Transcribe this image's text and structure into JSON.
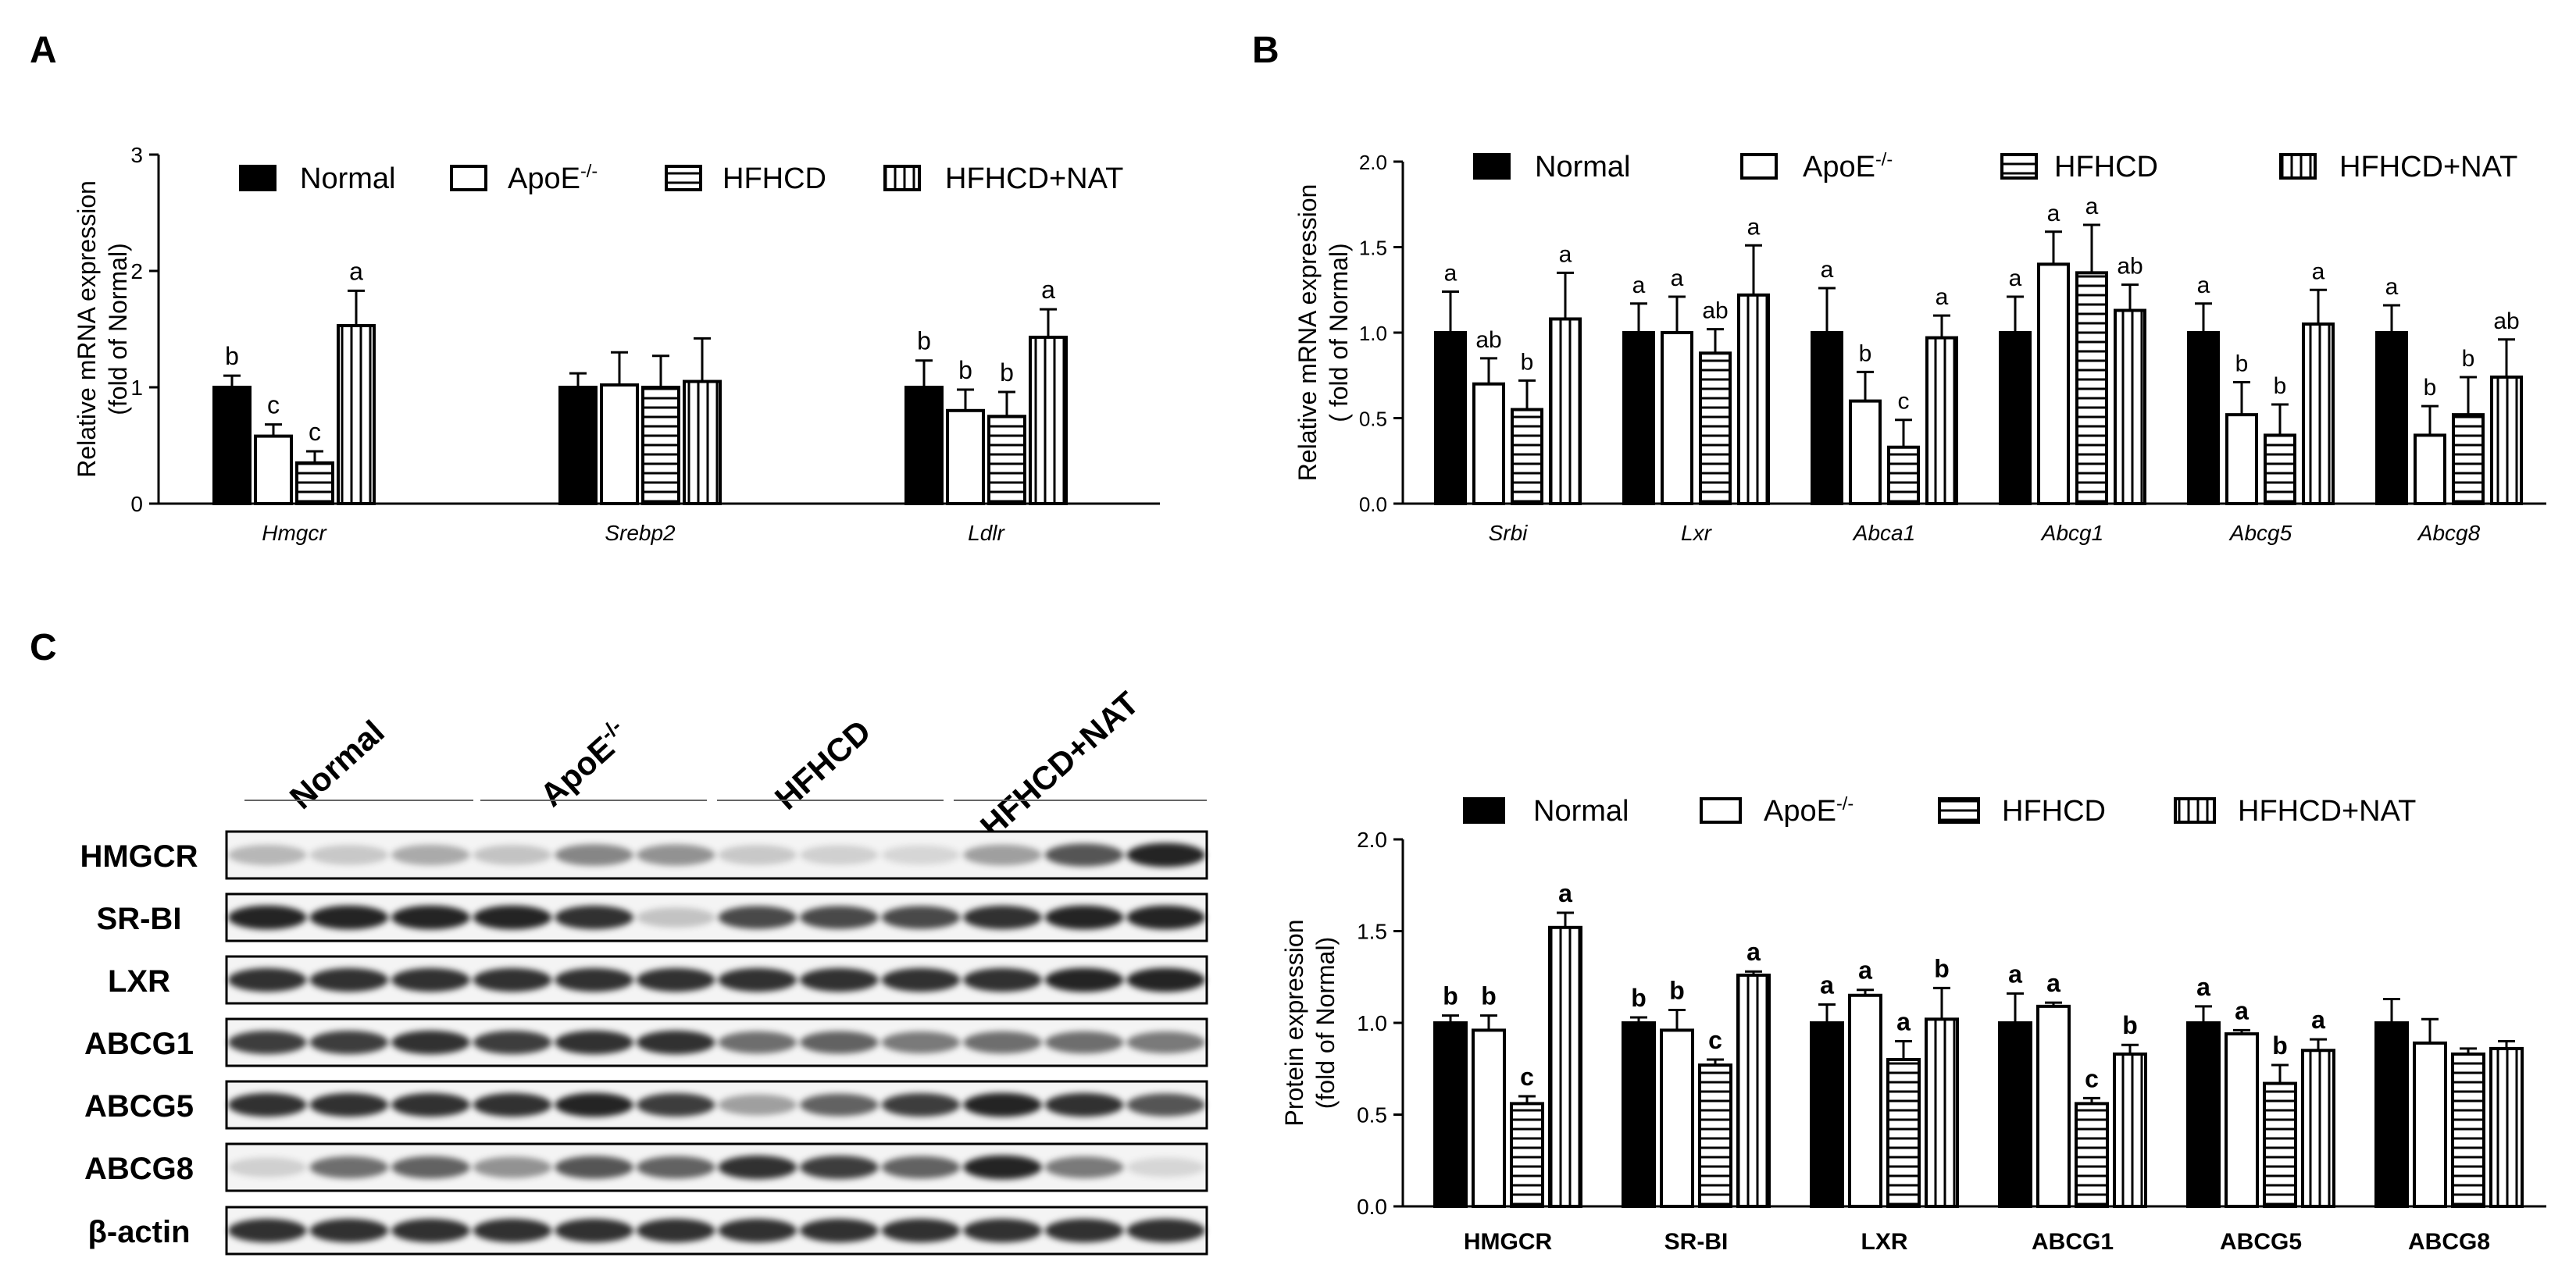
{
  "panels": {
    "A": "A",
    "B": "B",
    "C": "C"
  },
  "legend": {
    "labels": [
      "Normal",
      "ApoE",
      "HFHCD",
      "HFHCD+NAT"
    ],
    "apoe_superscript": "-/-"
  },
  "blot": {
    "groups": [
      "Normal",
      "ApoE",
      "HFHCD",
      "HFHCD+NAT"
    ],
    "apoe_superscript": "-/-",
    "proteins": [
      "HMGCR",
      "SR-BI",
      "LXR",
      "ABCG1",
      "ABCG5",
      "ABCG8",
      "β-actin"
    ],
    "intensity": [
      [
        0.25,
        0.18,
        0.3,
        0.2,
        0.45,
        0.4,
        0.18,
        0.15,
        0.12,
        0.35,
        0.65,
        0.85
      ],
      [
        0.85,
        0.85,
        0.85,
        0.85,
        0.8,
        0.2,
        0.7,
        0.7,
        0.7,
        0.8,
        0.85,
        0.85
      ],
      [
        0.8,
        0.8,
        0.8,
        0.8,
        0.8,
        0.8,
        0.8,
        0.8,
        0.8,
        0.8,
        0.85,
        0.85
      ],
      [
        0.75,
        0.75,
        0.8,
        0.75,
        0.8,
        0.8,
        0.55,
        0.6,
        0.5,
        0.55,
        0.55,
        0.5
      ],
      [
        0.8,
        0.8,
        0.8,
        0.8,
        0.85,
        0.75,
        0.35,
        0.6,
        0.75,
        0.85,
        0.8,
        0.65
      ],
      [
        0.15,
        0.55,
        0.6,
        0.4,
        0.65,
        0.6,
        0.8,
        0.75,
        0.6,
        0.85,
        0.5,
        0.12
      ],
      [
        0.8,
        0.8,
        0.8,
        0.8,
        0.8,
        0.8,
        0.8,
        0.8,
        0.8,
        0.8,
        0.8,
        0.8
      ]
    ]
  },
  "chart_data": [
    {
      "id": "A",
      "type": "bar",
      "ylabel": [
        "Relative mRNA expression",
        "(fold of Normal)"
      ],
      "ylim": [
        0,
        3
      ],
      "yticks": [
        "0",
        "1",
        "2",
        "3"
      ],
      "categories": [
        "Hmgcr",
        "Srebp2",
        "Ldlr"
      ],
      "series": [
        {
          "name": "Normal",
          "values": [
            1.0,
            1.0,
            1.0
          ],
          "errors": [
            0.1,
            0.12,
            0.23
          ],
          "letters": [
            "b",
            "",
            "b"
          ]
        },
        {
          "name": "ApoE-/-",
          "values": [
            0.58,
            1.02,
            0.8
          ],
          "errors": [
            0.1,
            0.28,
            0.18
          ],
          "letters": [
            "c",
            "",
            "b"
          ]
        },
        {
          "name": "HFHCD",
          "values": [
            0.35,
            1.0,
            0.75
          ],
          "errors": [
            0.1,
            0.27,
            0.21
          ],
          "letters": [
            "c",
            "",
            "b"
          ]
        },
        {
          "name": "HFHCD+NAT",
          "values": [
            1.53,
            1.05,
            1.43
          ],
          "errors": [
            0.3,
            0.37,
            0.24
          ],
          "letters": [
            "a",
            "",
            "a"
          ]
        }
      ]
    },
    {
      "id": "B",
      "type": "bar",
      "ylabel": [
        "Relative mRNA expression",
        "( fold of Normal)"
      ],
      "ylim": [
        0,
        2
      ],
      "yticks": [
        "0.0",
        "0.5",
        "1.0",
        "1.5",
        "2.0"
      ],
      "categories": [
        "Srbi",
        "Lxr",
        "Abca1",
        "Abcg1",
        "Abcg5",
        "Abcg8"
      ],
      "series": [
        {
          "name": "Normal",
          "values": [
            1.0,
            1.0,
            1.0,
            1.0,
            1.0,
            1.0
          ],
          "errors": [
            0.24,
            0.17,
            0.26,
            0.21,
            0.17,
            0.16
          ],
          "letters": [
            "a",
            "a",
            "a",
            "a",
            "a",
            "a"
          ]
        },
        {
          "name": "ApoE-/-",
          "values": [
            0.7,
            1.0,
            0.6,
            1.4,
            0.52,
            0.4
          ],
          "errors": [
            0.15,
            0.21,
            0.17,
            0.19,
            0.19,
            0.17
          ],
          "letters": [
            "ab",
            "a",
            "b",
            "a",
            "b",
            "b"
          ]
        },
        {
          "name": "HFHCD",
          "values": [
            0.55,
            0.88,
            0.33,
            1.35,
            0.4,
            0.52
          ],
          "errors": [
            0.17,
            0.14,
            0.16,
            0.28,
            0.18,
            0.22
          ],
          "letters": [
            "b",
            "ab",
            "c",
            "a",
            "b",
            "b"
          ]
        },
        {
          "name": "HFHCD+NAT",
          "values": [
            1.08,
            1.22,
            0.97,
            1.13,
            1.05,
            0.74
          ],
          "errors": [
            0.27,
            0.29,
            0.13,
            0.15,
            0.2,
            0.22
          ],
          "letters": [
            "a",
            "a",
            "a",
            "ab",
            "a",
            "ab"
          ]
        }
      ]
    },
    {
      "id": "C",
      "type": "bar",
      "ylabel": [
        "Protein expression",
        "(fold of Normal)"
      ],
      "ylim": [
        0,
        2
      ],
      "yticks": [
        "0.0",
        "0.5",
        "1.0",
        "1.5",
        "2.0"
      ],
      "categories": [
        "HMGCR",
        "SR-BI",
        "LXR",
        "ABCG1",
        "ABCG5",
        "ABCG8"
      ],
      "series": [
        {
          "name": "Normal",
          "values": [
            1.0,
            1.0,
            1.0,
            1.0,
            1.0,
            1.0
          ],
          "errors": [
            0.04,
            0.03,
            0.1,
            0.16,
            0.09,
            0.13
          ],
          "letters": [
            "b",
            "b",
            "a",
            "a",
            "a",
            ""
          ]
        },
        {
          "name": "ApoE-/-",
          "values": [
            0.96,
            0.96,
            1.15,
            1.09,
            0.94,
            0.89
          ],
          "errors": [
            0.08,
            0.11,
            0.03,
            0.02,
            0.02,
            0.13
          ],
          "letters": [
            "b",
            "b",
            "a",
            "a",
            "a",
            ""
          ]
        },
        {
          "name": "HFHCD",
          "values": [
            0.56,
            0.77,
            0.8,
            0.56,
            0.67,
            0.83
          ],
          "errors": [
            0.04,
            0.03,
            0.1,
            0.03,
            0.1,
            0.03
          ],
          "letters": [
            "c",
            "c",
            "a",
            "c",
            "b",
            ""
          ]
        },
        {
          "name": "HFHCD+NAT",
          "values": [
            1.52,
            1.26,
            1.02,
            0.83,
            0.85,
            0.86
          ],
          "errors": [
            0.08,
            0.02,
            0.17,
            0.05,
            0.06,
            0.04
          ],
          "letters": [
            "a",
            "a",
            "b",
            "b",
            "a",
            ""
          ]
        }
      ]
    }
  ]
}
